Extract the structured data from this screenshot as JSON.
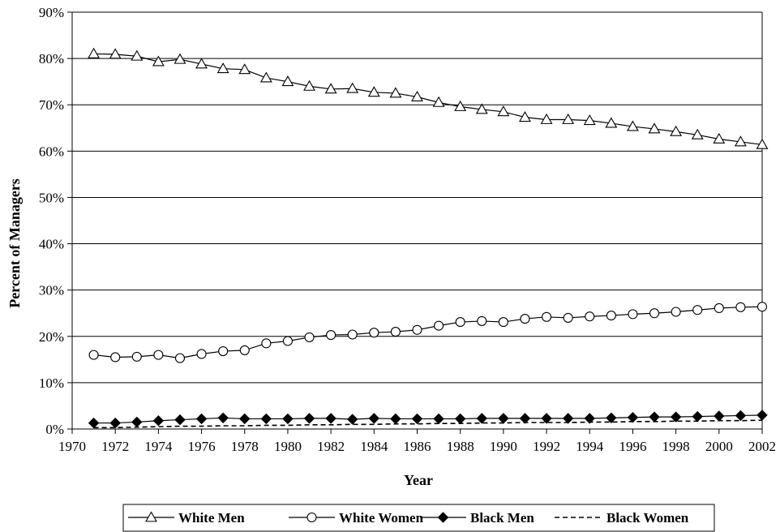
{
  "chart_data": {
    "type": "line",
    "title": "",
    "xlabel": "Year",
    "ylabel": "Percent of Managers",
    "xlim": [
      1970,
      2002
    ],
    "ylim": [
      0,
      90
    ],
    "x_ticks": [
      "1970",
      "1972",
      "1974",
      "1976",
      "1978",
      "1980",
      "1982",
      "1984",
      "1986",
      "1988",
      "1990",
      "1992",
      "1994",
      "1996",
      "1998",
      "2000",
      "2002"
    ],
    "y_ticks": [
      "0%",
      "10%",
      "20%",
      "30%",
      "40%",
      "50%",
      "60%",
      "70%",
      "80%",
      "90%"
    ],
    "grid": "horizontal",
    "legend_position": "bottom",
    "x": [
      1971,
      1972,
      1973,
      1974,
      1975,
      1976,
      1977,
      1978,
      1979,
      1980,
      1981,
      1982,
      1983,
      1984,
      1985,
      1986,
      1987,
      1988,
      1989,
      1990,
      1991,
      1992,
      1993,
      1994,
      1995,
      1996,
      1997,
      1998,
      1999,
      2000,
      2001,
      2002
    ],
    "series": [
      {
        "name": "White Men",
        "marker": "open-triangle",
        "line": "solid",
        "values": [
          81.0,
          80.9,
          80.5,
          79.3,
          79.8,
          78.8,
          77.8,
          77.6,
          75.8,
          75.0,
          74.0,
          73.4,
          73.5,
          72.7,
          72.5,
          71.7,
          70.5,
          69.6,
          69.0,
          68.5,
          67.3,
          66.8,
          66.8,
          66.6,
          66.0,
          65.3,
          64.8,
          64.2,
          63.5,
          62.6,
          62.0,
          61.4
        ]
      },
      {
        "name": "White Women",
        "marker": "open-circle",
        "line": "solid",
        "values": [
          16.0,
          15.5,
          15.6,
          16.0,
          15.3,
          16.2,
          16.8,
          17.0,
          18.5,
          19.0,
          19.8,
          20.3,
          20.4,
          20.8,
          21.0,
          21.4,
          22.3,
          23.1,
          23.3,
          23.1,
          23.8,
          24.2,
          24.0,
          24.3,
          24.5,
          24.8,
          25.0,
          25.3,
          25.7,
          26.1,
          26.3,
          26.4
        ]
      },
      {
        "name": "Black Men",
        "marker": "filled-diamond",
        "line": "solid",
        "values": [
          1.3,
          1.3,
          1.5,
          1.8,
          2.0,
          2.2,
          2.4,
          2.2,
          2.2,
          2.2,
          2.3,
          2.3,
          2.1,
          2.3,
          2.2,
          2.2,
          2.2,
          2.2,
          2.3,
          2.3,
          2.3,
          2.3,
          2.3,
          2.3,
          2.4,
          2.5,
          2.6,
          2.6,
          2.7,
          2.8,
          2.9,
          3.0
        ]
      },
      {
        "name": "Black Women",
        "marker": "none",
        "line": "dashed",
        "values": [
          0.3,
          0.3,
          0.4,
          0.5,
          0.6,
          0.6,
          0.7,
          0.7,
          0.8,
          0.8,
          0.9,
          0.9,
          1.0,
          1.0,
          1.1,
          1.1,
          1.2,
          1.2,
          1.3,
          1.3,
          1.4,
          1.4,
          1.4,
          1.5,
          1.5,
          1.6,
          1.6,
          1.7,
          1.7,
          1.8,
          1.8,
          1.9
        ]
      }
    ]
  }
}
